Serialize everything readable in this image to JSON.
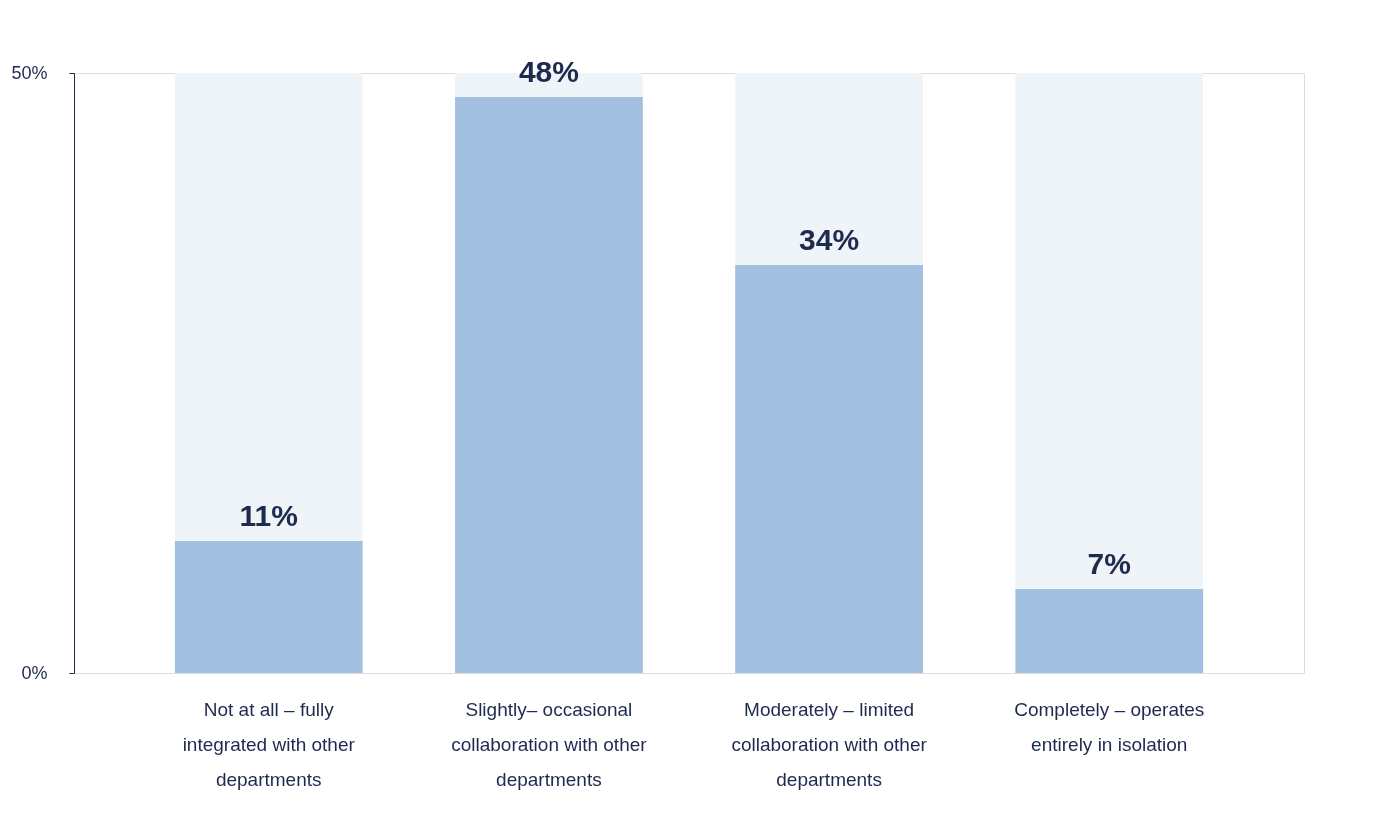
{
  "chart_data": {
    "type": "bar",
    "categories": [
      "Not at all – fully integrated with other departments",
      "Slightly– occasional collaboration with other departments",
      "Moderately – limited collaboration with other departments",
      "Completely – operates entirely in isolation"
    ],
    "series": [
      {
        "color": "#a4c0e0",
        "values": [
          11,
          48,
          34,
          7
        ],
        "value_labels": [
          "11%",
          "48%",
          "34%",
          "7%"
        ]
      }
    ],
    "ylim": [
      0,
      50
    ],
    "yticks": [
      {
        "value": 0,
        "label": "0%"
      },
      {
        "value": 50,
        "label": "50%"
      }
    ]
  }
}
